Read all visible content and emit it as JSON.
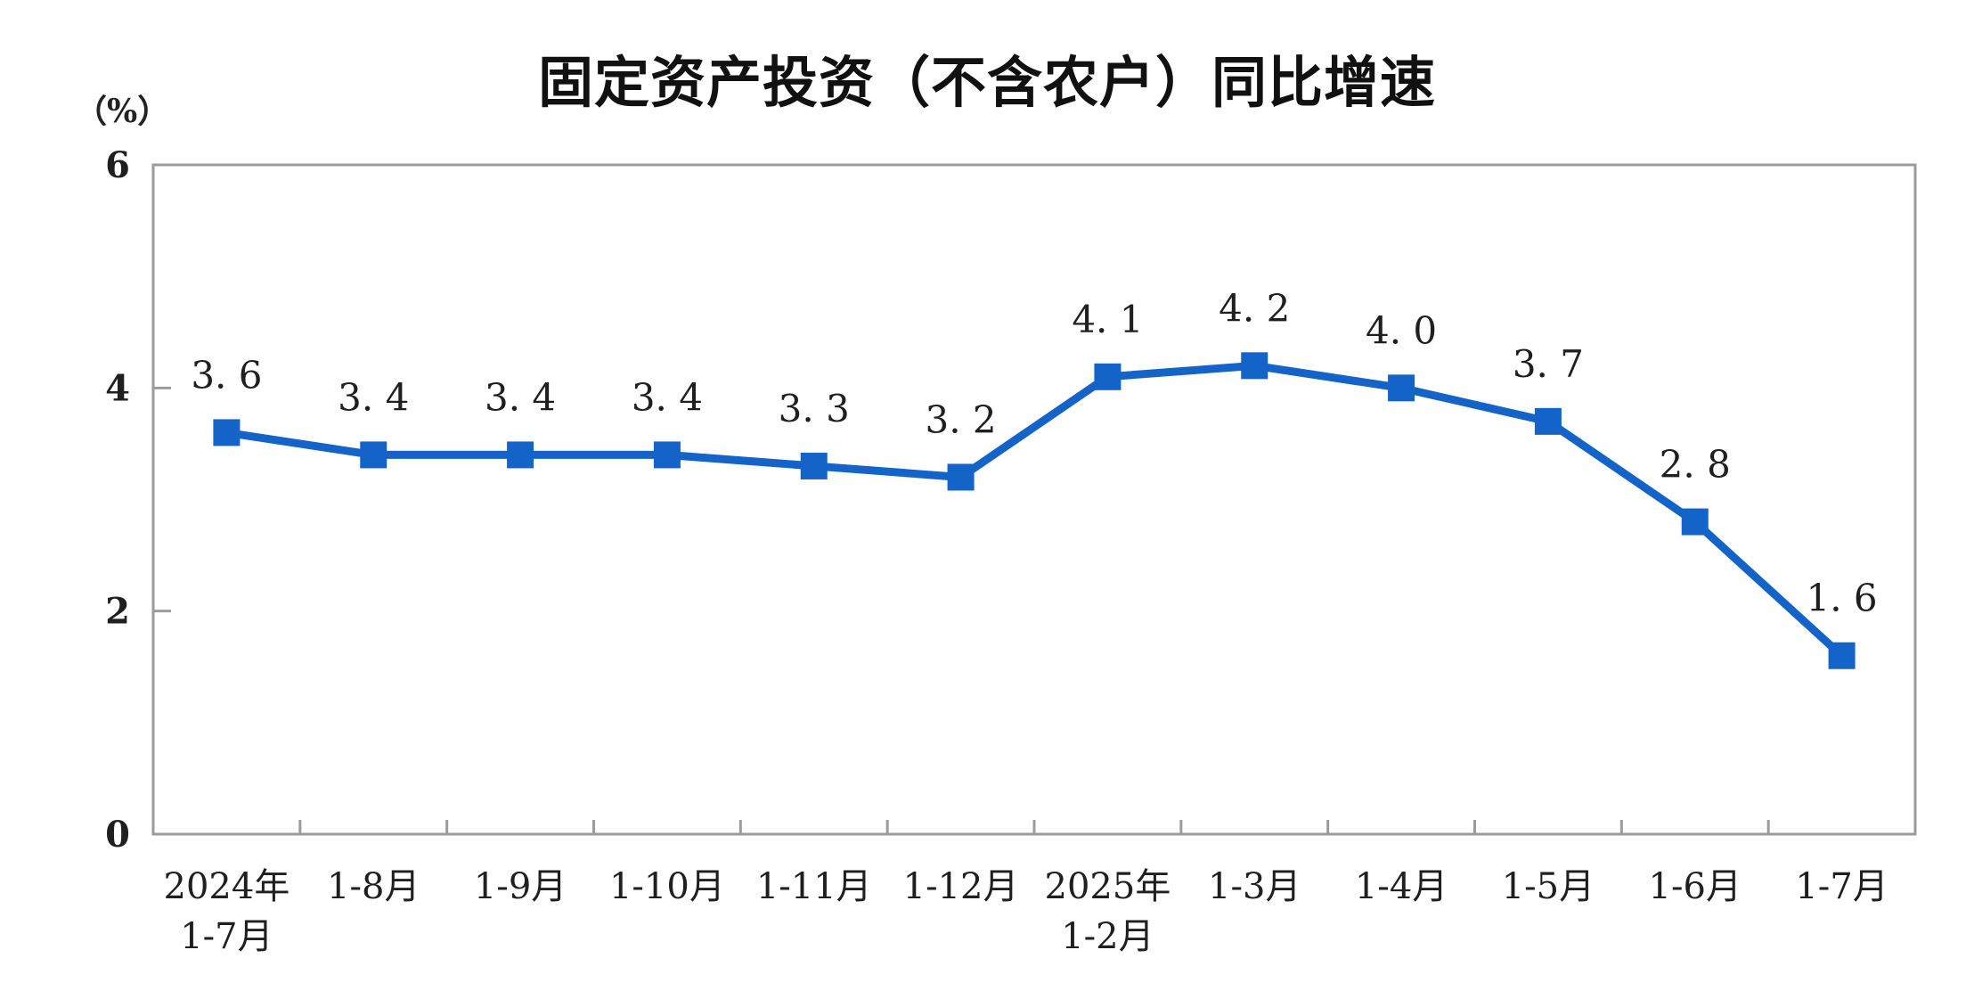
{
  "chart_data": {
    "type": "line",
    "title": "固定资产投资（不含农户）同比增速",
    "unit_label": "（%）",
    "categories": [
      [
        "2024年",
        "1-7月"
      ],
      [
        "1-8月"
      ],
      [
        "1-9月"
      ],
      [
        "1-10月"
      ],
      [
        "1-11月"
      ],
      [
        "1-12月"
      ],
      [
        "2025年",
        "1-2月"
      ],
      [
        "1-3月"
      ],
      [
        "1-4月"
      ],
      [
        "1-5月"
      ],
      [
        "1-6月"
      ],
      [
        "1-7月"
      ]
    ],
    "values": [
      3.6,
      3.4,
      3.4,
      3.4,
      3.3,
      3.2,
      4.1,
      4.2,
      4.0,
      3.7,
      2.8,
      1.6
    ],
    "point_labels": [
      "3. 6",
      "3. 4",
      "3. 4",
      "3. 4",
      "3. 3",
      "3. 2",
      "4. 1",
      "4. 2",
      "4. 0",
      "3. 7",
      "2. 8",
      "1. 6"
    ],
    "ylim": [
      0,
      6
    ],
    "yticks": [
      0,
      2,
      4,
      6
    ],
    "ytick_labels": [
      "0",
      "2",
      "4",
      "6"
    ],
    "grid": "off",
    "legend": "none",
    "colors": {
      "line": "#1463C8",
      "marker": "#1463C8",
      "axis": "#9b9b9b",
      "tick_text": "#1f1f1f",
      "label_text": "#1f1f1f",
      "title_text": "#111111"
    }
  }
}
